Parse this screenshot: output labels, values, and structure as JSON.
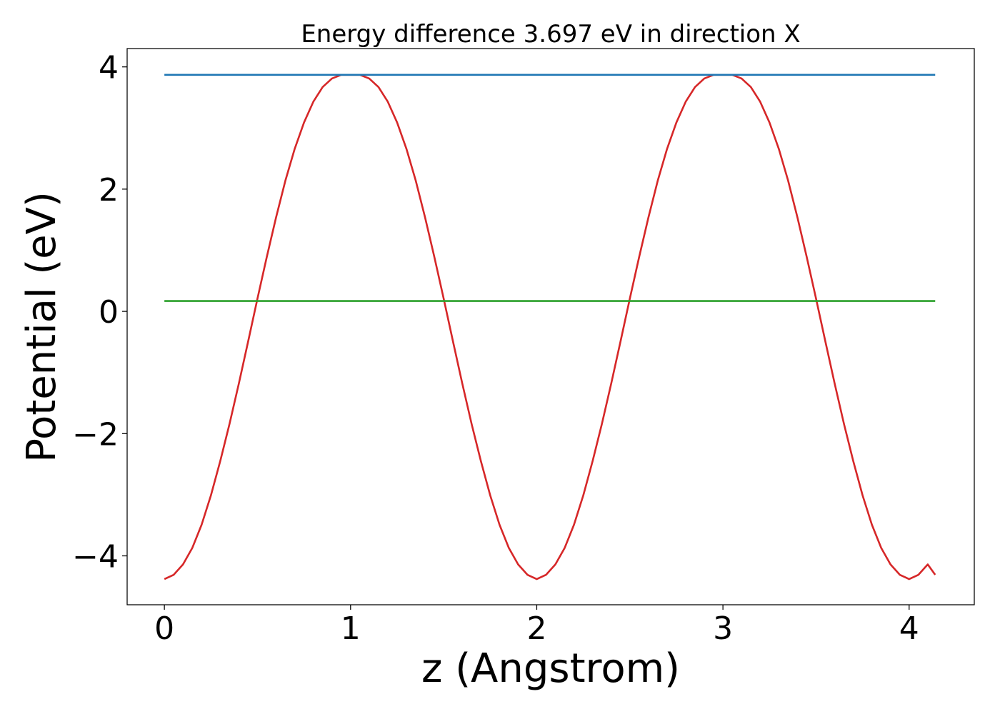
{
  "chart_data": {
    "type": "line",
    "title": "Energy difference 3.697 eV in direction X",
    "xlabel": "z (Angstrom)",
    "ylabel": "Potential (eV)",
    "xlim": [
      -0.2,
      4.35
    ],
    "ylim": [
      -4.8,
      4.3
    ],
    "xticks": [
      0,
      1,
      2,
      3,
      4
    ],
    "yticks": [
      -4,
      -2,
      0,
      2,
      4
    ],
    "xtick_labels": [
      "0",
      "1",
      "2",
      "3",
      "4"
    ],
    "ytick_labels": [
      "−4",
      "−2",
      "0",
      "2",
      "4"
    ],
    "grid": false,
    "legend": "none",
    "series": [
      {
        "color": "#d62728",
        "x": [
          0,
          0.05,
          0.1,
          0.15,
          0.2,
          0.25,
          0.3,
          0.35,
          0.4,
          0.45,
          0.5,
          0.55,
          0.6,
          0.65,
          0.7,
          0.75,
          0.8,
          0.85,
          0.9,
          0.95,
          1.0,
          1.05,
          1.1,
          1.15,
          1.2,
          1.25,
          1.3,
          1.35,
          1.4,
          1.45,
          1.5,
          1.55,
          1.6,
          1.65,
          1.7,
          1.75,
          1.8,
          1.85,
          1.9,
          1.95,
          2.0,
          2.05,
          2.1,
          2.15,
          2.2,
          2.25,
          2.3,
          2.35,
          2.4,
          2.45,
          2.5,
          2.55,
          2.6,
          2.65,
          2.7,
          2.75,
          2.8,
          2.85,
          2.9,
          2.95,
          3.0,
          3.05,
          3.1,
          3.15,
          3.2,
          3.25,
          3.3,
          3.35,
          3.4,
          3.45,
          3.5,
          3.55,
          3.6,
          3.65,
          3.7,
          3.75,
          3.8,
          3.85,
          3.9,
          3.95,
          4.0,
          4.05,
          4.1,
          4.14
        ],
        "y": [
          -4.38,
          -4.31,
          -4.14,
          -3.87,
          -3.49,
          -3.01,
          -2.45,
          -1.84,
          -1.18,
          -0.49,
          0.21,
          0.89,
          1.54,
          2.14,
          2.66,
          3.09,
          3.43,
          3.67,
          3.81,
          3.87,
          3.87,
          3.87,
          3.81,
          3.67,
          3.43,
          3.09,
          2.66,
          2.14,
          1.54,
          0.89,
          0.21,
          -0.49,
          -1.18,
          -1.84,
          -2.45,
          -3.01,
          -3.49,
          -3.87,
          -4.14,
          -4.31,
          -4.38,
          -4.31,
          -4.14,
          -3.87,
          -3.49,
          -3.01,
          -2.45,
          -1.84,
          -1.18,
          -0.49,
          0.21,
          0.89,
          1.54,
          2.14,
          2.66,
          3.09,
          3.43,
          3.67,
          3.81,
          3.87,
          3.87,
          3.87,
          3.81,
          3.67,
          3.43,
          3.09,
          2.66,
          2.14,
          1.54,
          0.89,
          0.21,
          -0.49,
          -1.18,
          -1.84,
          -2.45,
          -3.01,
          -3.49,
          -3.87,
          -4.14,
          -4.31,
          -4.38,
          -4.31,
          -4.14,
          -4.31
        ]
      },
      {
        "color": "#1f77b4",
        "x": [
          0,
          4.14
        ],
        "y": [
          3.87,
          3.87
        ]
      },
      {
        "color": "#2ca02c",
        "x": [
          0,
          4.14
        ],
        "y": [
          0.17,
          0.17
        ]
      }
    ]
  }
}
